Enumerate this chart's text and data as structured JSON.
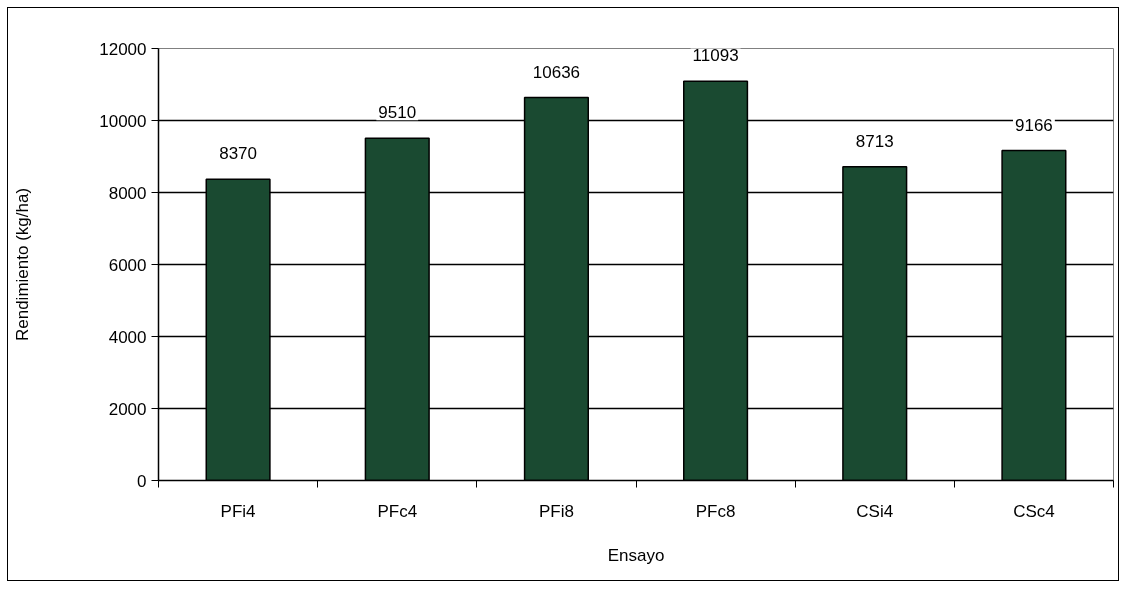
{
  "chart_data": {
    "type": "bar",
    "xlabel": "Ensayo",
    "ylabel": "Rendimiento (kg/ha)",
    "categories": [
      "PFi4",
      "PFc4",
      "PFi8",
      "PFc8",
      "CSi4",
      "CSc4"
    ],
    "values": [
      8370,
      9510,
      10636,
      11093,
      8713,
      9166
    ],
    "color": "#1a4a31",
    "ylim": [
      0,
      12000
    ],
    "yticks": [
      0,
      2000,
      4000,
      6000,
      8000,
      10000,
      12000
    ],
    "grid": "y",
    "data_labels": true
  }
}
